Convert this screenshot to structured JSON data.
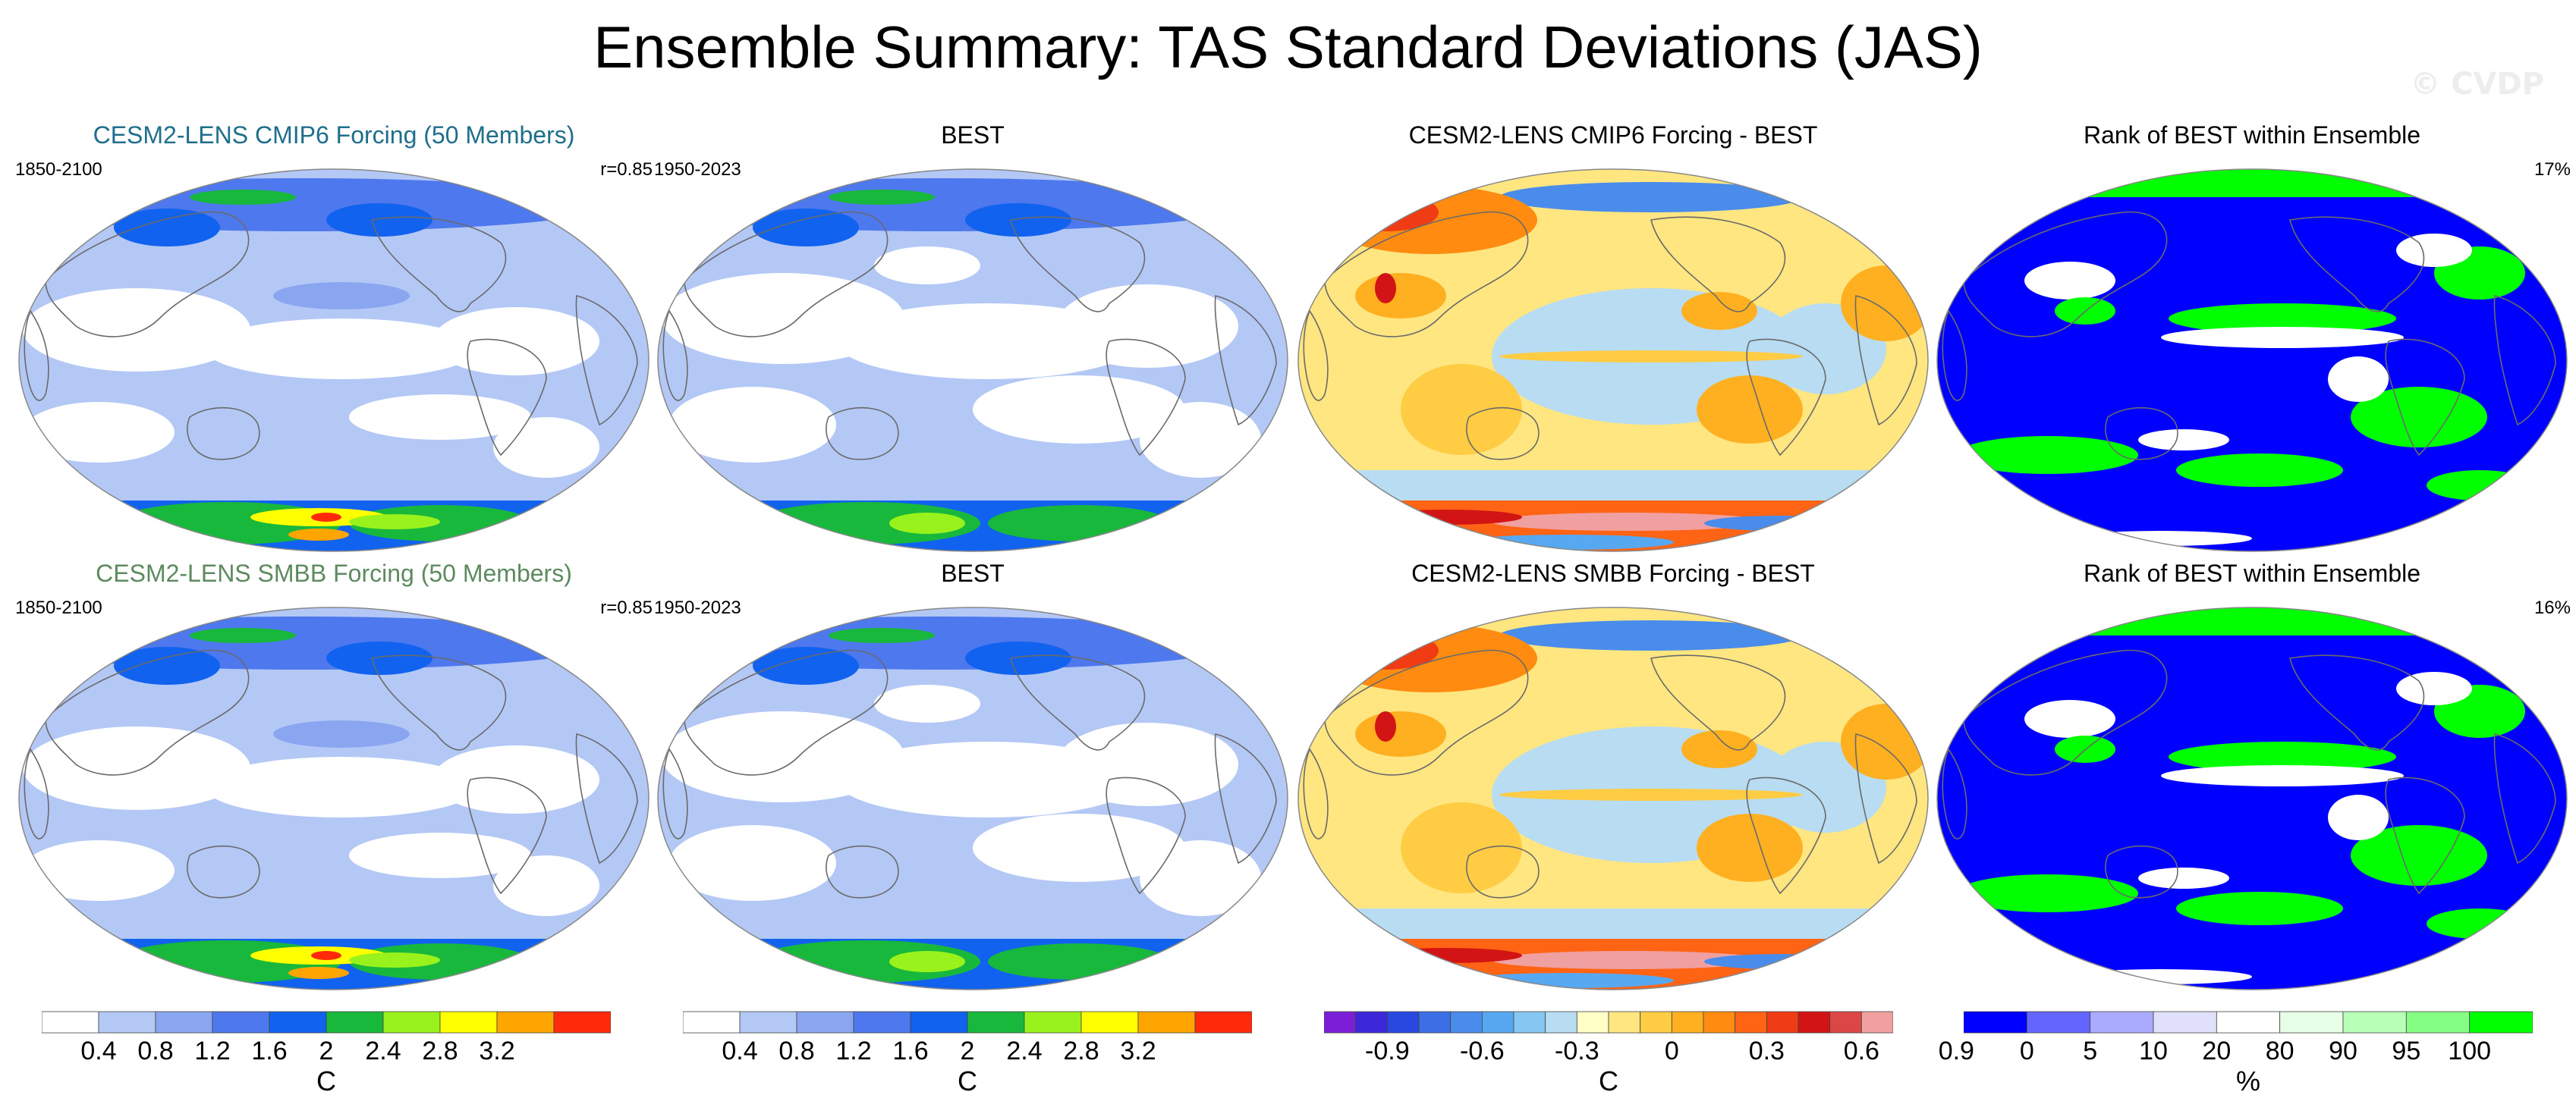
{
  "title": "Ensemble Summary: TAS Standard Deviations (JAS)",
  "watermark": "© CVDP",
  "rows": [
    {
      "panels": [
        {
          "title": "CESM2-LENS CMIP6 Forcing (50 Members)",
          "left": "1850-2100",
          "right": "r=0.85",
          "title_color": "#1e6e8c",
          "style": "std_model"
        },
        {
          "title": "BEST",
          "left": "1950-2023",
          "right": "",
          "title_color": "#000000",
          "style": "std_obs"
        },
        {
          "title": "CESM2-LENS CMIP6 Forcing - BEST",
          "left": "",
          "right": "",
          "title_color": "#000000",
          "style": "diff"
        },
        {
          "title": "Rank of BEST within Ensemble",
          "left": "",
          "right": "17%",
          "title_color": "#000000",
          "style": "rank"
        }
      ]
    },
    {
      "panels": [
        {
          "title": "CESM2-LENS SMBB Forcing (50 Members)",
          "left": "1850-2100",
          "right": "r=0.85",
          "title_color": "#5d8a5f",
          "style": "std_model"
        },
        {
          "title": "BEST",
          "left": "1950-2023",
          "right": "",
          "title_color": "#000000",
          "style": "std_obs"
        },
        {
          "title": "CESM2-LENS SMBB Forcing - BEST",
          "left": "",
          "right": "",
          "title_color": "#000000",
          "style": "diff"
        },
        {
          "title": "Rank of BEST within Ensemble",
          "left": "",
          "right": "16%",
          "title_color": "#000000",
          "style": "rank"
        }
      ]
    }
  ],
  "colorbars": [
    {
      "label": "C",
      "colors": [
        "#ffffff",
        "#b4c8f5",
        "#8aa6f0",
        "#4d78ee",
        "#1062ef",
        "#18b83c",
        "#9af21c",
        "#ffff00",
        "#ffa500",
        "#ff2a0a"
      ],
      "tick_labels": [
        "0.4",
        "0.8",
        "1.2",
        "1.6",
        "2",
        "2.4",
        "2.8",
        "3.2"
      ]
    },
    {
      "label": "C",
      "colors": [
        "#ffffff",
        "#b4c8f5",
        "#8aa6f0",
        "#4d78ee",
        "#1062ef",
        "#18b83c",
        "#9af21c",
        "#ffff00",
        "#ffa500",
        "#ff2a0a"
      ],
      "tick_labels": [
        "0.4",
        "0.8",
        "1.2",
        "1.6",
        "2",
        "2.4",
        "2.8",
        "3.2"
      ]
    },
    {
      "label": "C",
      "colors": [
        "#7a1fd6",
        "#3c28d8",
        "#2848e0",
        "#3c6ee6",
        "#4a8cec",
        "#56a8f0",
        "#86c6f2",
        "#b8dcf2",
        "#ffffc8",
        "#ffe680",
        "#ffcc44",
        "#ffb020",
        "#ff8c10",
        "#ff6414",
        "#f03c14",
        "#d21414",
        "#dc4646",
        "#f0a0a0"
      ],
      "tick_labels": [
        "-0.9",
        "-0.6",
        "-0.3",
        "0",
        "0.3",
        "0.6",
        "0.9"
      ]
    },
    {
      "label": "%",
      "colors": [
        "#0000ff",
        "#6464ff",
        "#aaaaff",
        "#e0e0fa",
        "#ffffff",
        "#e6ffe6",
        "#b8ffb8",
        "#84ff84",
        "#00ff00"
      ],
      "tick_labels": [
        "0",
        "5",
        "10",
        "20",
        "80",
        "90",
        "95",
        "100"
      ]
    }
  ]
}
